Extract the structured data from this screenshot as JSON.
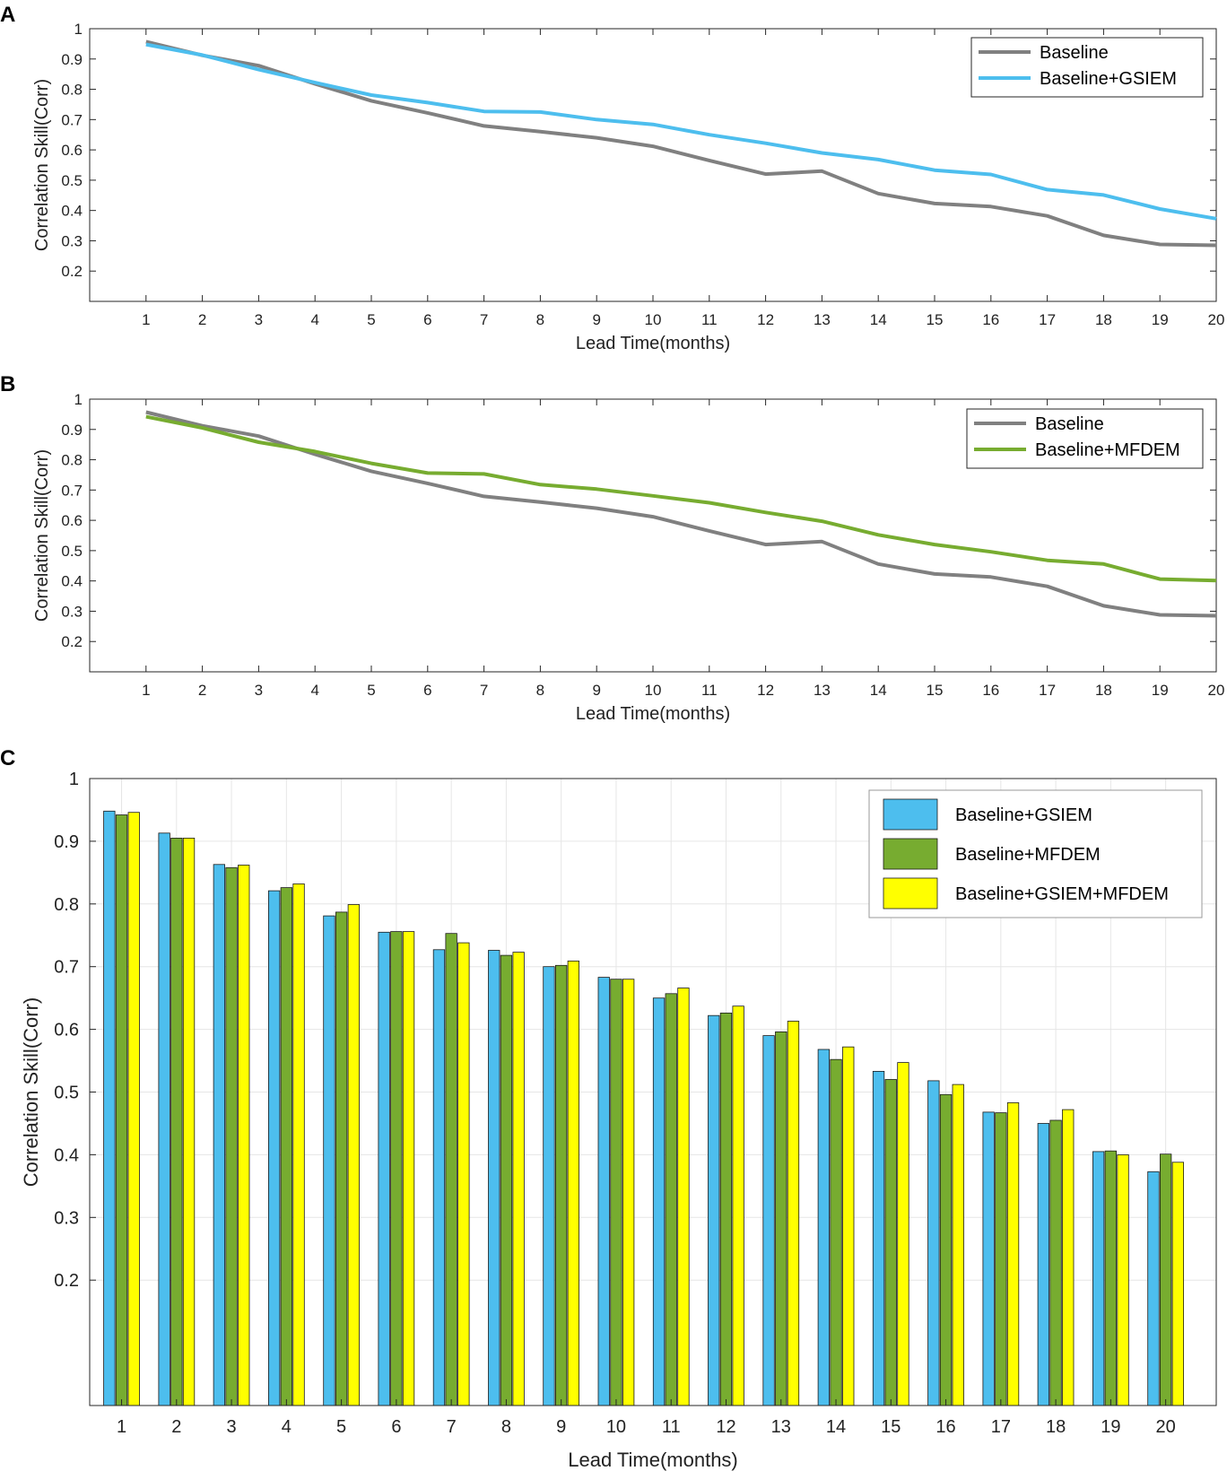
{
  "colors": {
    "baseline": "#808080",
    "gsiem": "#4DBEEE",
    "mfdem": "#77AC30",
    "gsiem_mfdem": "#FFFF00",
    "grid": "#e6e6e6",
    "axis": "#262626"
  },
  "chart_data": [
    {
      "panel": "A",
      "type": "line",
      "title": "",
      "xlabel": "Lead Time(months)",
      "ylabel": "Correlation Skill(Corr)",
      "xlim": [
        0,
        20
      ],
      "ylim": [
        0.1,
        1
      ],
      "x": [
        1,
        2,
        3,
        4,
        5,
        6,
        7,
        8,
        9,
        10,
        11,
        12,
        13,
        14,
        15,
        16,
        17,
        18,
        19,
        20
      ],
      "yticks": [
        "1",
        "0.9",
        "0.8",
        "0.7",
        "0.6",
        "0.5",
        "0.4",
        "0.3",
        "0.2"
      ],
      "grid": false,
      "legend_position": "top-right",
      "series": [
        {
          "name": "Baseline",
          "color_key": "baseline",
          "values": [
            0.957,
            0.912,
            0.878,
            0.818,
            0.762,
            0.722,
            0.679,
            0.66,
            0.64,
            0.612,
            0.565,
            0.52,
            0.53,
            0.456,
            0.423,
            0.413,
            0.382,
            0.318,
            0.288,
            0.285
          ]
        },
        {
          "name": "Baseline+GSIEM",
          "color_key": "gsiem",
          "values": [
            0.948,
            0.913,
            0.865,
            0.822,
            0.781,
            0.756,
            0.727,
            0.725,
            0.7,
            0.684,
            0.65,
            0.622,
            0.59,
            0.568,
            0.533,
            0.519,
            0.469,
            0.451,
            0.405,
            0.373
          ]
        }
      ]
    },
    {
      "panel": "B",
      "type": "line",
      "title": "",
      "xlabel": "Lead Time(months)",
      "ylabel": "Correlation Skill(Corr)",
      "xlim": [
        0,
        20
      ],
      "ylim": [
        0.1,
        1
      ],
      "x": [
        1,
        2,
        3,
        4,
        5,
        6,
        7,
        8,
        9,
        10,
        11,
        12,
        13,
        14,
        15,
        16,
        17,
        18,
        19,
        20
      ],
      "yticks": [
        "1",
        "0.9",
        "0.8",
        "0.7",
        "0.6",
        "0.5",
        "0.4",
        "0.3",
        "0.2"
      ],
      "grid": false,
      "legend_position": "top-right",
      "series": [
        {
          "name": "Baseline",
          "color_key": "baseline",
          "values": [
            0.957,
            0.912,
            0.878,
            0.818,
            0.762,
            0.722,
            0.679,
            0.66,
            0.64,
            0.612,
            0.565,
            0.52,
            0.53,
            0.456,
            0.423,
            0.413,
            0.382,
            0.318,
            0.288,
            0.285
          ]
        },
        {
          "name": "Baseline+MFDEM",
          "color_key": "mfdem",
          "values": [
            0.942,
            0.905,
            0.858,
            0.827,
            0.788,
            0.756,
            0.753,
            0.718,
            0.703,
            0.681,
            0.658,
            0.626,
            0.597,
            0.552,
            0.52,
            0.496,
            0.468,
            0.456,
            0.406,
            0.401
          ]
        }
      ]
    },
    {
      "panel": "C",
      "type": "bar",
      "title": "",
      "xlabel": "Lead Time(months)",
      "ylabel": "Correlation Skill(Corr)",
      "ylim": [
        0,
        1
      ],
      "categories": [
        "1",
        "2",
        "3",
        "4",
        "5",
        "6",
        "7",
        "8",
        "9",
        "10",
        "11",
        "12",
        "13",
        "14",
        "15",
        "16",
        "17",
        "18",
        "19",
        "20"
      ],
      "yticks": [
        "1",
        "0.9",
        "0.8",
        "0.7",
        "0.6",
        "0.5",
        "0.4",
        "0.3",
        "0.2"
      ],
      "grid": true,
      "legend_position": "top-right",
      "series": [
        {
          "name": "Baseline+GSIEM",
          "color_key": "gsiem",
          "values": [
            0.948,
            0.913,
            0.863,
            0.821,
            0.781,
            0.755,
            0.727,
            0.726,
            0.7,
            0.683,
            0.65,
            0.622,
            0.59,
            0.568,
            0.533,
            0.518,
            0.468,
            0.45,
            0.405,
            0.373
          ]
        },
        {
          "name": "Baseline+MFDEM",
          "color_key": "mfdem",
          "values": [
            0.942,
            0.905,
            0.858,
            0.826,
            0.787,
            0.756,
            0.753,
            0.718,
            0.702,
            0.68,
            0.657,
            0.626,
            0.596,
            0.552,
            0.52,
            0.496,
            0.467,
            0.455,
            0.406,
            0.401
          ]
        },
        {
          "name": "Baseline+GSIEM+MFDEM",
          "color_key": "gsiem_mfdem",
          "values": [
            0.946,
            0.905,
            0.862,
            0.832,
            0.799,
            0.756,
            0.738,
            0.723,
            0.709,
            0.68,
            0.666,
            0.637,
            0.613,
            0.572,
            0.547,
            0.512,
            0.483,
            0.472,
            0.4,
            0.388
          ]
        }
      ]
    }
  ]
}
